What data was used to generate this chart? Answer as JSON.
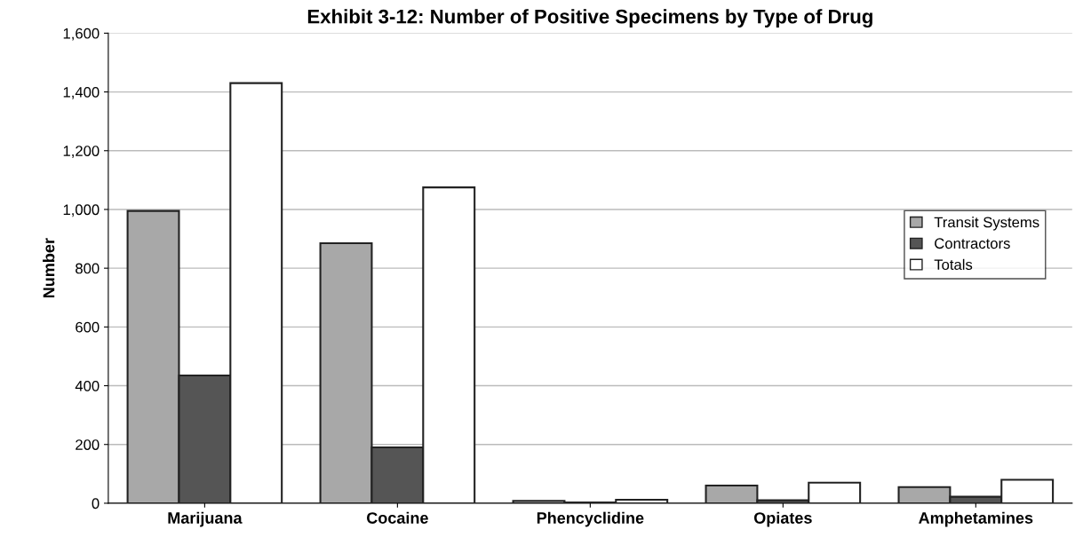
{
  "chart_data": {
    "type": "bar",
    "title": "Exhibit 3-12: Number of Positive Specimens by Type of Drug",
    "ylabel": "Number",
    "categories": [
      "Marijuana",
      "Cocaine",
      "Phencyclidine",
      "Opiates",
      "Amphetamines"
    ],
    "series": [
      {
        "name": "Transit Systems",
        "color": "#a8a8a8",
        "values": [
          995,
          885,
          8,
          60,
          55
        ]
      },
      {
        "name": "Contractors",
        "color": "#555555",
        "values": [
          435,
          190,
          3,
          10,
          22
        ]
      },
      {
        "name": "Totals",
        "color": "#ffffff",
        "values": [
          1430,
          1075,
          12,
          70,
          80
        ]
      }
    ],
    "ylim": [
      0,
      1600
    ],
    "yticks": [
      {
        "value": 0,
        "label": "0"
      },
      {
        "value": 200,
        "label": "200"
      },
      {
        "value": 400,
        "label": "400"
      },
      {
        "value": 600,
        "label": "600"
      },
      {
        "value": 800,
        "label": "800"
      },
      {
        "value": 1000,
        "label": "1,000"
      },
      {
        "value": 1200,
        "label": "1,200"
      },
      {
        "value": 1400,
        "label": "1,400"
      },
      {
        "value": 1600,
        "label": "1,600"
      }
    ],
    "grid": "y",
    "legend": "right"
  }
}
